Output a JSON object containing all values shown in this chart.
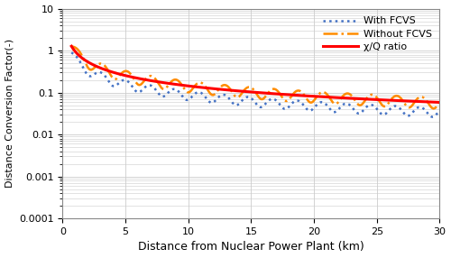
{
  "title": "",
  "xlabel": "Distance from Nuclear Power Plant (km)",
  "ylabel": "Distance Conversion Factor(-)",
  "xlim": [
    0,
    30
  ],
  "ylim": [
    0.0001,
    10
  ],
  "xticks": [
    0,
    5,
    10,
    15,
    20,
    25,
    30
  ],
  "yticks": [
    0.0001,
    0.001,
    0.01,
    0.1,
    1,
    10
  ],
  "ytick_labels": [
    "0.0001",
    "0.001",
    "0.01",
    "0.1",
    "1",
    "10"
  ],
  "legend": [
    "χ/Q ratio",
    "Without FCVS",
    "With FCVS"
  ],
  "chi_q_color": "#FF0000",
  "without_fcvs_color": "#FF8C00",
  "with_fcvs_color": "#4472C4",
  "chi_q_linestyle": "solid",
  "chi_q_linewidth": 2.2,
  "without_fcvs_linewidth": 1.8,
  "with_fcvs_linewidth": 1.8,
  "grid_color": "#CCCCCC",
  "background_color": "#FFFFFF",
  "xlabel_fontsize": 9,
  "ylabel_fontsize": 8,
  "legend_fontsize": 8
}
